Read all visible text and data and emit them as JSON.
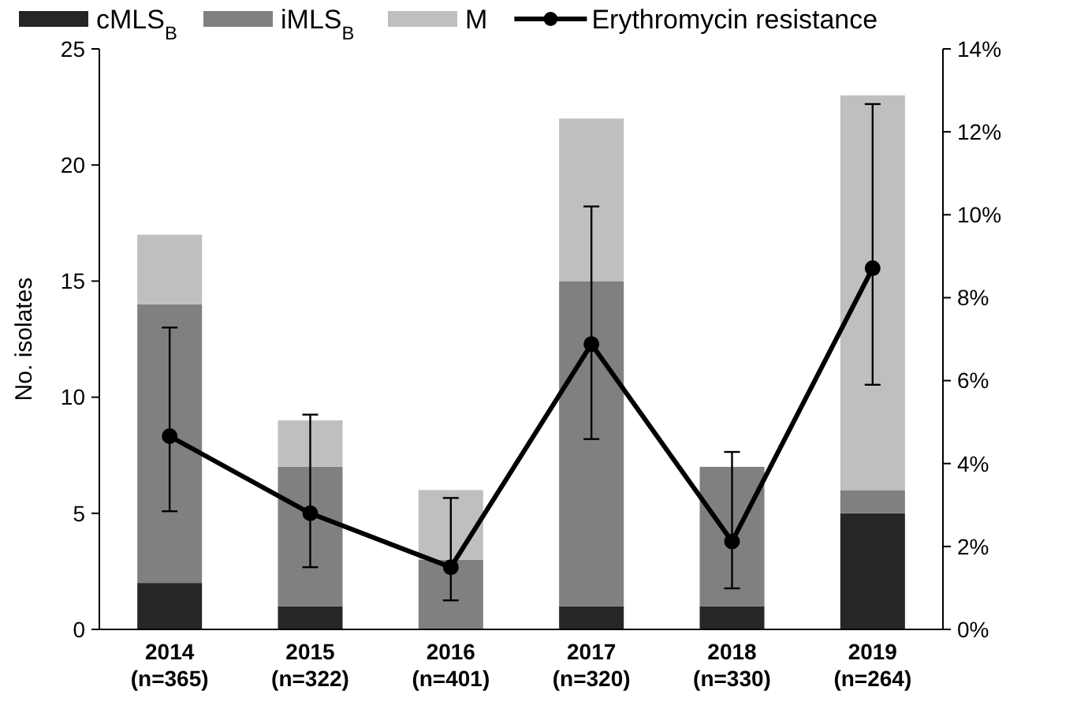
{
  "chart_data": {
    "type": "bar",
    "stacked": true,
    "ylabel": "No. isolates",
    "legend": "top",
    "categories": [
      "2014\n(n=365)",
      "2015\n(n=322)",
      "2016\n(n=401)",
      "2017\n(n=320)",
      "2018\n(n=330)",
      "2019\n(n=264)"
    ],
    "series": [
      {
        "name": "cMLS$_{B}$",
        "color": "#262626",
        "values": [
          2,
          1,
          0,
          1,
          1,
          5
        ]
      },
      {
        "name": "iMLS$_{B}$",
        "color": "#808080",
        "values": [
          12,
          6,
          3,
          14,
          6,
          1
        ]
      },
      {
        "name": "M",
        "color": "#bfbfbf",
        "values": [
          3,
          2,
          3,
          7,
          0,
          17
        ]
      },
      {
        "name": "Erythromycin resistance",
        "type": "line",
        "axis": "y2",
        "color": "#000000",
        "marker": "circle",
        "values": [
          4.66,
          2.8,
          1.5,
          6.88,
          2.12,
          8.71
        ],
        "errors": [
          [
            2.85,
            7.28
          ],
          [
            1.5,
            5.18
          ],
          [
            0.7,
            3.17
          ],
          [
            4.59,
            10.2
          ],
          [
            0.99,
            4.28
          ],
          [
            5.9,
            12.67
          ]
        ]
      }
    ],
    "ylim": [
      0,
      25
    ],
    "yticks": [
      0,
      5,
      10,
      15,
      20,
      25
    ],
    "y2lim": [
      0,
      14
    ],
    "y2ticks": [
      {
        "value": 0,
        "label": "0%"
      },
      {
        "value": 2,
        "label": "2%"
      },
      {
        "value": 4,
        "label": "4%"
      },
      {
        "value": 6,
        "label": "6%"
      },
      {
        "value": 8,
        "label": "8%"
      },
      {
        "value": 10,
        "label": "10%"
      },
      {
        "value": 12,
        "label": "12%"
      },
      {
        "value": 14,
        "label": "14%"
      }
    ]
  }
}
